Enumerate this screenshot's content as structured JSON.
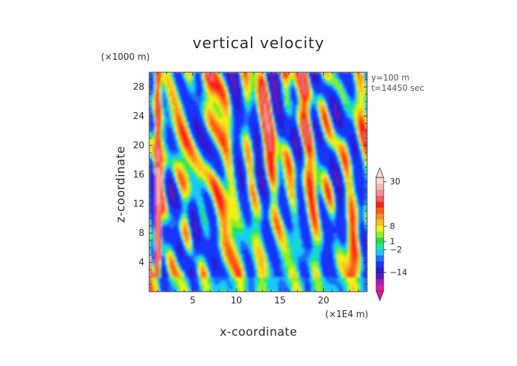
{
  "chart_data": {
    "type": "heatmap",
    "title": "vertical velocity",
    "xlabel": "x-coordinate",
    "ylabel": "z-coordinate",
    "x_scale_label": "(×1E4 m)",
    "y_scale_label": "(×1000 m)",
    "annotations": [
      "y=100 m",
      "t=14450 sec"
    ],
    "xlim": [
      0,
      25
    ],
    "ylim": [
      0,
      30
    ],
    "x_ticks": [
      5,
      10,
      15,
      20
    ],
    "y_ticks": [
      4,
      8,
      12,
      16,
      20,
      24,
      28
    ],
    "colorbar": {
      "tick_labels": [
        "30",
        "8",
        "1",
        "−2",
        "−14"
      ],
      "tick_values": [
        30,
        8,
        1,
        -2,
        -14
      ],
      "colors": [
        "#f01a9a",
        "#a01ec0",
        "#5a1ab8",
        "#2a1ad0",
        "#1436ff",
        "#1e70ff",
        "#18c8ff",
        "#18e8a0",
        "#20e050",
        "#90f028",
        "#f0f018",
        "#ffc020",
        "#ff9020",
        "#ff5a14",
        "#ff1e1e",
        "#f06060",
        "#f49090",
        "#f8b8b8",
        "#fbd8d8"
      ]
    },
    "grid": false
  }
}
